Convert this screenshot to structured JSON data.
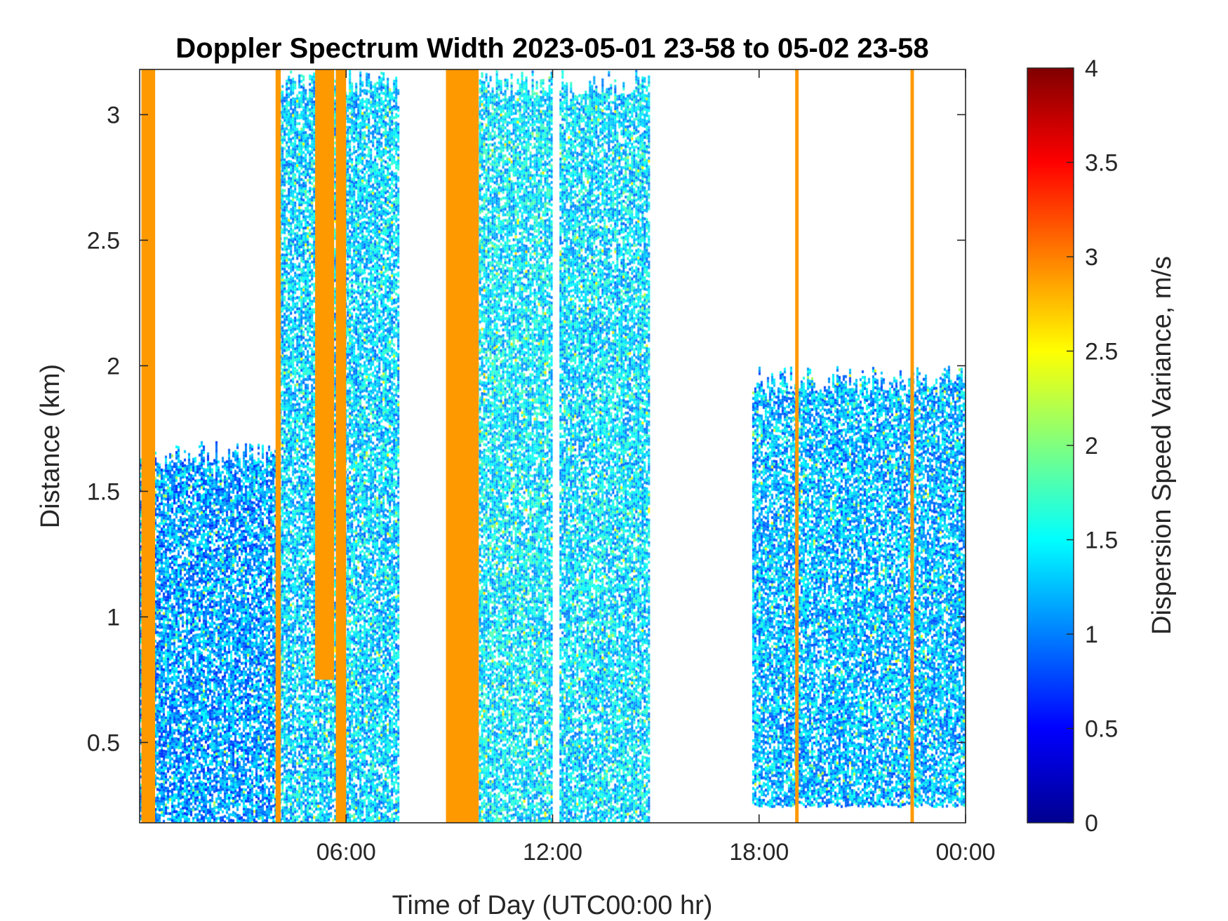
{
  "chart_data": {
    "type": "heatmap",
    "title": "Doppler Spectrum Width 2023-05-01 23-58 to 05-02 23-58",
    "xlabel": "Time of Day (UTC00:00 hr)",
    "ylabel": "Distance (km)",
    "x_ticks": [
      "06:00",
      "12:00",
      "18:00",
      "00:00"
    ],
    "x_tick_hours": [
      6,
      12,
      18,
      24
    ],
    "xlim_hours": [
      0,
      24
    ],
    "y_ticks": [
      "0.5",
      "1",
      "1.5",
      "2",
      "2.5",
      "3"
    ],
    "y_tick_values": [
      0.5,
      1,
      1.5,
      2,
      2.5,
      3
    ],
    "ylim": [
      0.18,
      3.18
    ],
    "colorbar": {
      "label": "Dispersion Speed Variance, m/s",
      "colormap": "jet",
      "range": [
        0,
        4
      ],
      "ticks": [
        "0",
        "0.5",
        "1",
        "1.5",
        "2",
        "2.5",
        "3",
        "3.5",
        "4"
      ],
      "tick_values": [
        0,
        0.5,
        1,
        1.5,
        2,
        2.5,
        3,
        3.5,
        4
      ]
    },
    "features": [
      {
        "kind": "saturated_band",
        "start_hr": 0.05,
        "end_hr": 0.45,
        "y_min": 0.18,
        "y_max": 3.18,
        "value": 2.9
      },
      {
        "kind": "saturated_band",
        "start_hr": 3.95,
        "end_hr": 4.1,
        "y_min": 0.18,
        "y_max": 3.18,
        "value": 2.9
      },
      {
        "kind": "saturated_band",
        "start_hr": 5.1,
        "end_hr": 5.65,
        "y_min": 0.75,
        "y_max": 3.18,
        "value": 2.9
      },
      {
        "kind": "saturated_band",
        "start_hr": 5.7,
        "end_hr": 6.0,
        "y_min": 0.18,
        "y_max": 3.18,
        "value": 2.9
      },
      {
        "kind": "saturated_band",
        "start_hr": 8.9,
        "end_hr": 9.85,
        "y_min": 0.18,
        "y_max": 3.18,
        "value": 2.9
      },
      {
        "kind": "saturated_band",
        "start_hr": 19.05,
        "end_hr": 19.15,
        "y_min": 0.18,
        "y_max": 3.18,
        "value": 2.9
      },
      {
        "kind": "saturated_band",
        "start_hr": 22.4,
        "end_hr": 22.5,
        "y_min": 0.18,
        "y_max": 3.18,
        "value": 2.9
      },
      {
        "kind": "echo_region",
        "start_hr": 0.0,
        "end_hr": 4.0,
        "y_min": 0.18,
        "y_max": 1.7,
        "mean_value": 1.1
      },
      {
        "kind": "echo_region",
        "start_hr": 4.0,
        "end_hr": 7.5,
        "y_min": 0.18,
        "y_max": 3.18,
        "mean_value": 1.3
      },
      {
        "kind": "echo_region",
        "start_hr": 9.8,
        "end_hr": 12.0,
        "y_min": 0.18,
        "y_max": 3.18,
        "mean_value": 1.4
      },
      {
        "kind": "echo_region",
        "start_hr": 12.2,
        "end_hr": 14.8,
        "y_min": 0.18,
        "y_max": 3.18,
        "mean_value": 1.35
      },
      {
        "kind": "echo_region",
        "start_hr": 17.8,
        "end_hr": 24.0,
        "y_min": 0.25,
        "y_max": 2.0,
        "mean_value": 1.2
      }
    ]
  }
}
